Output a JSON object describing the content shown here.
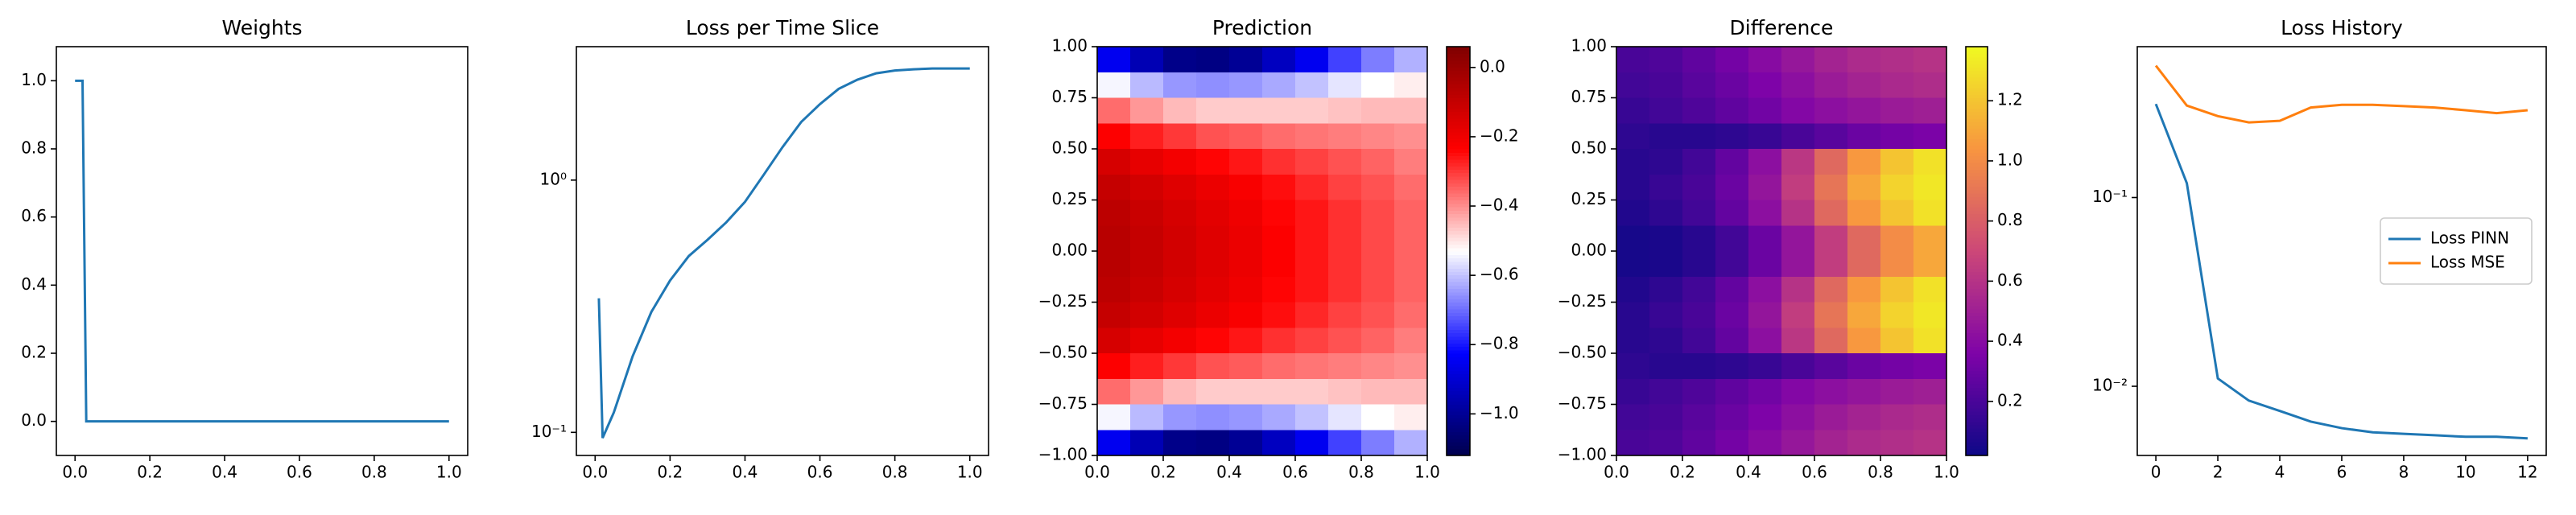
{
  "chart_data": [
    {
      "type": "line",
      "title": "Weights",
      "x": [
        0.0,
        0.02,
        0.03,
        1.0
      ],
      "series": [
        {
          "color": "#1f77b4",
          "values": [
            1.0,
            1.0,
            0.0,
            0.0
          ]
        }
      ],
      "xlim": [
        -0.05,
        1.05
      ],
      "ylim": [
        -0.1,
        1.1
      ],
      "xticks": [
        {
          "value": 0,
          "label": "0.0"
        },
        0.2,
        0.4,
        0.6,
        0.8,
        {
          "value": 1,
          "label": "1.0"
        }
      ],
      "yticks": [
        {
          "value": 0,
          "label": "0.0"
        },
        0.2,
        0.4,
        0.6,
        0.8,
        {
          "value": 1,
          "label": "1.0"
        }
      ]
    },
    {
      "type": "line",
      "title": "Loss per Time Slice",
      "yscale": "log",
      "x": [
        0.01,
        0.02,
        0.05,
        0.1,
        0.15,
        0.2,
        0.25,
        0.3,
        0.35,
        0.4,
        0.45,
        0.5,
        0.55,
        0.6,
        0.65,
        0.7,
        0.75,
        0.8,
        0.85,
        0.9,
        0.95,
        1.0
      ],
      "series": [
        {
          "color": "#1f77b4",
          "values": [
            0.34,
            0.095,
            0.12,
            0.2,
            0.3,
            0.4,
            0.5,
            0.58,
            0.68,
            0.82,
            1.05,
            1.35,
            1.7,
            2.0,
            2.3,
            2.5,
            2.65,
            2.72,
            2.75,
            2.77,
            2.77,
            2.77
          ]
        }
      ],
      "xlim": [
        -0.05,
        1.05
      ],
      "ylim": [
        0.081,
        3.38
      ],
      "xticks": [
        {
          "value": 0,
          "label": "0.0"
        },
        0.2,
        0.4,
        0.6,
        0.8,
        {
          "value": 1,
          "label": "1.0"
        }
      ],
      "yticks": [
        {
          "value": 0.1,
          "label": "10⁻¹"
        },
        {
          "value": 1,
          "label": "10⁰"
        }
      ]
    },
    {
      "type": "heatmap",
      "title": "Prediction",
      "colormap": "seismic",
      "clim": [
        -1.12,
        0.06
      ],
      "xlim": [
        0,
        1
      ],
      "ylim": [
        -1,
        1
      ],
      "values": [
        [
          -0.85,
          -0.95,
          -1.02,
          -1.03,
          -1.0,
          -0.93,
          -0.85,
          -0.75,
          -0.68,
          -0.62
        ],
        [
          -0.54,
          -0.61,
          -0.65,
          -0.66,
          -0.65,
          -0.63,
          -0.6,
          -0.56,
          -0.53,
          -0.51
        ],
        [
          -0.36,
          -0.41,
          -0.45,
          -0.47,
          -0.47,
          -0.47,
          -0.47,
          -0.46,
          -0.45,
          -0.45
        ],
        [
          -0.23,
          -0.27,
          -0.3,
          -0.33,
          -0.34,
          -0.36,
          -0.37,
          -0.38,
          -0.39,
          -0.4
        ],
        [
          -0.14,
          -0.18,
          -0.21,
          -0.24,
          -0.26,
          -0.29,
          -0.31,
          -0.33,
          -0.35,
          -0.38
        ],
        [
          -0.1,
          -0.13,
          -0.16,
          -0.19,
          -0.22,
          -0.25,
          -0.28,
          -0.31,
          -0.33,
          -0.36
        ],
        [
          -0.08,
          -0.11,
          -0.14,
          -0.17,
          -0.2,
          -0.24,
          -0.26,
          -0.29,
          -0.32,
          -0.35
        ],
        [
          -0.07,
          -0.1,
          -0.13,
          -0.16,
          -0.19,
          -0.23,
          -0.26,
          -0.29,
          -0.32,
          -0.35
        ],
        [
          -0.07,
          -0.1,
          -0.13,
          -0.16,
          -0.19,
          -0.23,
          -0.26,
          -0.29,
          -0.32,
          -0.35
        ],
        [
          -0.08,
          -0.11,
          -0.14,
          -0.17,
          -0.2,
          -0.24,
          -0.26,
          -0.29,
          -0.32,
          -0.35
        ],
        [
          -0.1,
          -0.13,
          -0.16,
          -0.19,
          -0.22,
          -0.25,
          -0.28,
          -0.31,
          -0.33,
          -0.36
        ],
        [
          -0.14,
          -0.18,
          -0.21,
          -0.24,
          -0.26,
          -0.29,
          -0.31,
          -0.33,
          -0.35,
          -0.38
        ],
        [
          -0.23,
          -0.27,
          -0.3,
          -0.33,
          -0.34,
          -0.36,
          -0.37,
          -0.38,
          -0.39,
          -0.4
        ],
        [
          -0.36,
          -0.41,
          -0.45,
          -0.47,
          -0.47,
          -0.47,
          -0.47,
          -0.46,
          -0.45,
          -0.45
        ],
        [
          -0.54,
          -0.61,
          -0.65,
          -0.66,
          -0.65,
          -0.63,
          -0.6,
          -0.56,
          -0.53,
          -0.51
        ],
        [
          -0.85,
          -0.95,
          -1.02,
          -1.03,
          -1.0,
          -0.93,
          -0.85,
          -0.75,
          -0.68,
          -0.62
        ]
      ],
      "xticks": [
        {
          "value": 0,
          "label": "0.0"
        },
        0.2,
        0.4,
        0.6,
        0.8,
        {
          "value": 1,
          "label": "1.0"
        }
      ],
      "yticks": [
        {
          "value": -1,
          "label": "−1.00"
        },
        {
          "value": -0.75,
          "label": "−0.75"
        },
        {
          "value": -0.5,
          "label": "−0.50"
        },
        {
          "value": -0.25,
          "label": "−0.25"
        },
        {
          "value": 0,
          "label": "0.00"
        },
        0.25,
        {
          "value": 0.5,
          "label": "0.50"
        },
        0.75,
        {
          "value": 1,
          "label": "1.00"
        }
      ],
      "colorbar_ticks": [
        {
          "value": 0,
          "label": "0.0"
        },
        {
          "value": -0.2,
          "label": "−0.2"
        },
        {
          "value": -0.4,
          "label": "−0.4"
        },
        {
          "value": -0.6,
          "label": "−0.6"
        },
        {
          "value": -0.8,
          "label": "−0.8"
        },
        {
          "value": -1,
          "label": "−1.0"
        }
      ]
    },
    {
      "type": "heatmap",
      "title": "Difference",
      "colormap": "plasma",
      "clim": [
        0.02,
        1.38
      ],
      "xlim": [
        0,
        1
      ],
      "ylim": [
        -1,
        1
      ],
      "values": [
        [
          0.2,
          0.22,
          0.27,
          0.33,
          0.4,
          0.46,
          0.52,
          0.56,
          0.58,
          0.6
        ],
        [
          0.18,
          0.2,
          0.25,
          0.3,
          0.36,
          0.42,
          0.48,
          0.52,
          0.55,
          0.57
        ],
        [
          0.15,
          0.18,
          0.22,
          0.27,
          0.32,
          0.38,
          0.42,
          0.45,
          0.48,
          0.5
        ],
        [
          0.12,
          0.1,
          0.1,
          0.12,
          0.15,
          0.2,
          0.25,
          0.3,
          0.33,
          0.35
        ],
        [
          0.1,
          0.12,
          0.18,
          0.28,
          0.42,
          0.62,
          0.85,
          1.05,
          1.2,
          1.3
        ],
        [
          0.1,
          0.15,
          0.2,
          0.3,
          0.45,
          0.65,
          0.9,
          1.1,
          1.25,
          1.32
        ],
        [
          0.08,
          0.12,
          0.18,
          0.28,
          0.42,
          0.6,
          0.85,
          1.05,
          1.2,
          1.3
        ],
        [
          0.05,
          0.06,
          0.1,
          0.18,
          0.3,
          0.45,
          0.65,
          0.85,
          1.0,
          1.1
        ],
        [
          0.05,
          0.06,
          0.1,
          0.18,
          0.3,
          0.45,
          0.65,
          0.85,
          1.0,
          1.1
        ],
        [
          0.08,
          0.12,
          0.18,
          0.28,
          0.42,
          0.6,
          0.85,
          1.05,
          1.2,
          1.3
        ],
        [
          0.1,
          0.15,
          0.2,
          0.3,
          0.45,
          0.65,
          0.9,
          1.1,
          1.25,
          1.32
        ],
        [
          0.1,
          0.12,
          0.18,
          0.28,
          0.42,
          0.62,
          0.85,
          1.05,
          1.2,
          1.3
        ],
        [
          0.12,
          0.1,
          0.1,
          0.12,
          0.15,
          0.2,
          0.25,
          0.3,
          0.33,
          0.35
        ],
        [
          0.15,
          0.18,
          0.22,
          0.27,
          0.32,
          0.38,
          0.42,
          0.45,
          0.48,
          0.5
        ],
        [
          0.18,
          0.2,
          0.25,
          0.3,
          0.36,
          0.42,
          0.48,
          0.52,
          0.55,
          0.57
        ],
        [
          0.2,
          0.22,
          0.27,
          0.33,
          0.4,
          0.46,
          0.52,
          0.56,
          0.58,
          0.6
        ]
      ],
      "xticks": [
        {
          "value": 0,
          "label": "0.0"
        },
        0.2,
        0.4,
        0.6,
        0.8,
        {
          "value": 1,
          "label": "1.0"
        }
      ],
      "yticks": [
        {
          "value": -1,
          "label": "−1.00"
        },
        {
          "value": -0.75,
          "label": "−0.75"
        },
        {
          "value": -0.5,
          "label": "−0.50"
        },
        {
          "value": -0.25,
          "label": "−0.25"
        },
        {
          "value": 0,
          "label": "0.00"
        },
        0.25,
        {
          "value": 0.5,
          "label": "0.50"
        },
        0.75,
        {
          "value": 1,
          "label": "1.00"
        }
      ],
      "colorbar_ticks": [
        0.2,
        0.4,
        0.6,
        0.8,
        {
          "value": 1,
          "label": "1.0"
        },
        1.2
      ]
    },
    {
      "type": "line",
      "title": "Loss History",
      "yscale": "log",
      "legend": "center right",
      "x": [
        0,
        1,
        2,
        3,
        4,
        5,
        6,
        7,
        8,
        9,
        10,
        11,
        12
      ],
      "series": [
        {
          "name": "Loss PINN",
          "color": "#1f77b4",
          "values": [
            0.313,
            0.119,
            0.011,
            0.0084,
            0.0074,
            0.0065,
            0.006,
            0.0057,
            0.0056,
            0.0055,
            0.0054,
            0.0054,
            0.0053
          ]
        },
        {
          "name": "Loss MSE",
          "color": "#ff7f0e",
          "values": [
            0.5,
            0.307,
            0.27,
            0.25,
            0.255,
            0.3,
            0.31,
            0.31,
            0.305,
            0.3,
            0.29,
            0.28,
            0.29
          ]
        }
      ],
      "xlim": [
        -0.6,
        12.6
      ],
      "ylim": [
        0.0043,
        0.63
      ],
      "xticks": [
        0,
        2,
        4,
        6,
        8,
        10,
        12
      ],
      "yticks": [
        {
          "value": 0.01,
          "label": "10⁻²"
        },
        {
          "value": 0.1,
          "label": "10⁻¹"
        }
      ]
    }
  ]
}
